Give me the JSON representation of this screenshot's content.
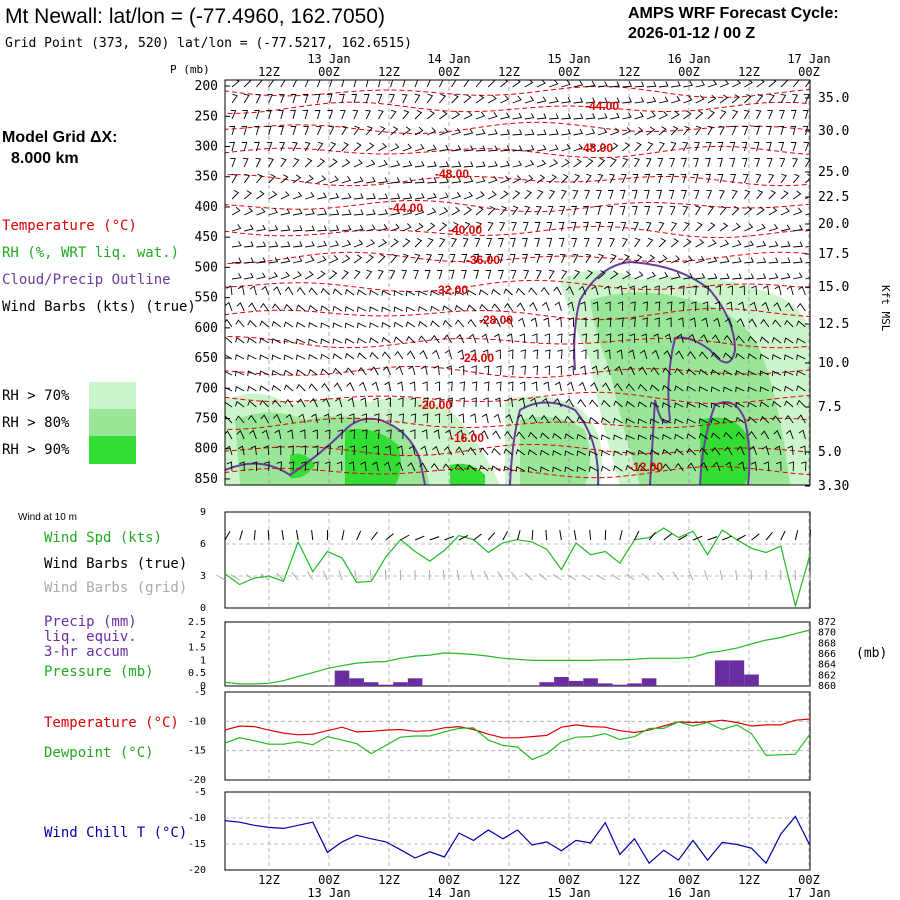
{
  "header": {
    "title": "Mt Newall:  lat/lon = (-77.4960, 162.7050)",
    "subtitle": "Grid Point (373, 520) lat/lon = (-77.5217, 162.6515)",
    "cycle_line1": "AMPS WRF Forecast Cycle:",
    "cycle_line2": "2026-01-12 / 00  Z"
  },
  "legend": {
    "model_grid_line1": "Model Grid ΔX:",
    "model_grid_line2": "8.000 km",
    "temperature": "Temperature (°C)",
    "rh": "RH (%, WRT liq. wat.)",
    "cloud": "Cloud/Precip Outline",
    "wind_barbs": "Wind Barbs (kts) (true)",
    "rh70": "RH > 70%",
    "rh80": "RH > 80%",
    "rh90": "RH > 90%"
  },
  "axes": {
    "p_label": "P (mb)",
    "kft_label": "Kft MSL",
    "time_ticks": [
      "12Z",
      "00Z",
      "12Z",
      "00Z",
      "12Z",
      "00Z",
      "12Z",
      "00Z",
      "12Z",
      "00Z"
    ],
    "date_labels": [
      "13 Jan",
      "14 Jan",
      "15 Jan",
      "16 Jan",
      "17 Jan"
    ],
    "wind10m_title": "Wind at 10 m",
    "mb_unit": "(mb)"
  },
  "colors": {
    "temp": "#dd0000",
    "rh70": "#ccf5cc",
    "rh80": "#99e699",
    "rh90": "#33dd33",
    "cloud": "#6a3d9a",
    "precip": "#6a2ea0",
    "pressure": "#22bb22",
    "wind_spd": "#22bb22",
    "dewpoint": "#22bb22",
    "wind_chill": "#0000aa",
    "grid_barbs": "#aaaaaa"
  },
  "chart_data": [
    {
      "type": "heatmap",
      "name": "time-height cross section",
      "p_levels": [
        200,
        250,
        300,
        350,
        400,
        450,
        500,
        550,
        600,
        650,
        700,
        750,
        800,
        850
      ],
      "height_kft": [
        "35.0",
        "30.0",
        "25.0",
        "22.5",
        "20.0",
        "17.5",
        "15.0",
        "12.5",
        "10.0",
        "7.5",
        "5.0",
        "3.30"
      ],
      "temperature_labels": [
        "-44.00",
        "-48.00",
        "-48.00",
        "-44.00",
        "-40.00",
        "-36.00",
        "-32.00",
        "-28.00",
        "-24.00",
        "-20.00",
        "-16.00",
        "-12.00"
      ],
      "legend_labels": [
        "Temperature (°C)",
        "RH (%, WRT liq. wat.)",
        "Cloud/Precip Outline",
        "Wind Barbs (kts) (true)"
      ]
    },
    {
      "type": "line",
      "name": "wind_10m",
      "ylim": [
        0,
        9
      ],
      "yticks": [
        "9",
        "6",
        "3",
        "0"
      ],
      "series": [
        {
          "name": "Wind Spd (kts)",
          "values": [
            3.2,
            2.2,
            2.8,
            3.0,
            2.5,
            6.2,
            3.4,
            5.3,
            4.7,
            2.4,
            2.5,
            4.8,
            6.4,
            5.3,
            4.4,
            5.4,
            6.8,
            6.4,
            5.2,
            6.1,
            6.4,
            6.2,
            5.5,
            3.6,
            6.1,
            5.0,
            5.3,
            4.2,
            6.4,
            6.6,
            7.5,
            6.6,
            7.2,
            5.0,
            7.3,
            6.4,
            5.6,
            5.2,
            5.8,
            0.2,
            5.0
          ]
        },
        {
          "name": "Wind Barbs (true)",
          "values": []
        },
        {
          "name": "Wind Barbs (grid)",
          "values": []
        }
      ]
    },
    {
      "type": "bar",
      "name": "precip_pressure",
      "ylim": [
        0,
        2.5
      ],
      "yticks": [
        "2.5",
        "2",
        "1.5",
        "1",
        "0.5",
        "0"
      ],
      "y2ticks": [
        "872",
        "870",
        "868",
        "866",
        "864",
        "862",
        "860"
      ],
      "precip_series": {
        "name": "Precip (mm) liq. equiv. 3-hr accum",
        "values": [
          0,
          0,
          0,
          0,
          0,
          0,
          0,
          0,
          0.6,
          0.3,
          0.15,
          0.05,
          0.15,
          0.3,
          0,
          0,
          0,
          0,
          0,
          0,
          0,
          0,
          0.15,
          0.35,
          0.2,
          0.3,
          0.1,
          0.05,
          0.1,
          0.3,
          0,
          0,
          0,
          0,
          1.0,
          1.0,
          0.45,
          0,
          0,
          0,
          0
        ]
      },
      "pressure_series": {
        "name": "Pressure (mb)",
        "values": [
          860.7,
          860.4,
          860.4,
          860.5,
          861.0,
          861.8,
          862.5,
          863.3,
          863.8,
          864.3,
          864.5,
          864.6,
          865.2,
          865.6,
          865.8,
          866.2,
          866.1,
          865.9,
          865.6,
          865.2,
          865.0,
          864.8,
          864.8,
          864.8,
          864.8,
          864.8,
          864.9,
          864.9,
          865.0,
          865.2,
          865.2,
          865.2,
          865.4,
          866.2,
          866.6,
          867.1,
          867.9,
          868.6,
          869.1,
          869.8,
          870.5
        ]
      }
    },
    {
      "type": "line",
      "name": "temperature_dewpoint",
      "ylim": [
        -20,
        -5
      ],
      "yticks": [
        "-5",
        "-10",
        "-15",
        "-20"
      ],
      "series": [
        {
          "name": "Temperature (°C)",
          "values": [
            -11.5,
            -10.8,
            -10.9,
            -11.5,
            -12.0,
            -12.3,
            -12.2,
            -11.6,
            -11.0,
            -11.8,
            -11.7,
            -11.5,
            -11.4,
            -11.7,
            -11.6,
            -11.1,
            -10.9,
            -11.4,
            -12.2,
            -12.8,
            -12.8,
            -12.6,
            -12.4,
            -11.0,
            -10.6,
            -10.9,
            -11.0,
            -11.6,
            -11.9,
            -11.5,
            -10.8,
            -10.1,
            -10.2,
            -10.1,
            -9.8,
            -10.2,
            -10.8,
            -10.6,
            -10.6,
            -9.8,
            -9.6
          ]
        },
        {
          "name": "Dewpoint (°C)",
          "values": [
            -13.7,
            -12.8,
            -13.3,
            -13.9,
            -13.9,
            -13.5,
            -14.0,
            -12.6,
            -13.2,
            -13.8,
            -15.5,
            -14.1,
            -12.7,
            -12.5,
            -12.5,
            -11.8,
            -11.2,
            -11.1,
            -13.2,
            -14.1,
            -14.4,
            -16.5,
            -15.5,
            -13.5,
            -12.7,
            -12.6,
            -12.1,
            -13.1,
            -12.6,
            -11.2,
            -11.2,
            -10.1,
            -10.8,
            -10.2,
            -11.4,
            -10.6,
            -12.1,
            -15.8,
            -15.7,
            -15.6,
            -12.2
          ]
        }
      ]
    },
    {
      "type": "line",
      "name": "wind_chill",
      "ylim": [
        -20,
        -5
      ],
      "yticks": [
        "-5",
        "-10",
        "-15",
        "-20"
      ],
      "series": [
        {
          "name": "Wind Chill T (°C)",
          "values": [
            -10.5,
            -10.8,
            -11.4,
            -11.8,
            -12.0,
            -11.4,
            -10.8,
            -16.6,
            -14.6,
            -13.3,
            -14.0,
            -14.6,
            -16.1,
            -17.7,
            -16.5,
            -17.5,
            -12.9,
            -14.3,
            -12.3,
            -14.0,
            -12.3,
            -15.2,
            -14.6,
            -16.3,
            -14.3,
            -14.8,
            -10.9,
            -17.0,
            -14.0,
            -18.7,
            -16.2,
            -18.1,
            -14.3,
            -18.1,
            -14.7,
            -15.1,
            -15.8,
            -18.7,
            -13.1,
            -9.7,
            -15.3
          ]
        }
      ]
    }
  ]
}
